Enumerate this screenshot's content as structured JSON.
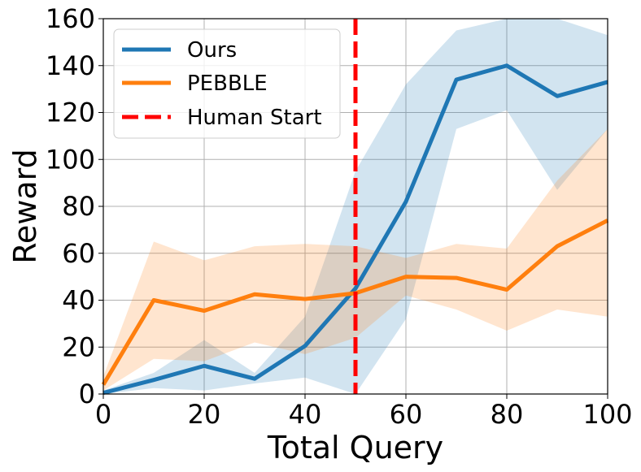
{
  "chart_data": {
    "type": "line",
    "xlabel": "Total Query",
    "ylabel": "Reward",
    "xlim": [
      0,
      100
    ],
    "ylim": [
      0,
      160
    ],
    "x_ticks": [
      "0",
      "20",
      "40",
      "60",
      "80",
      "100"
    ],
    "y_ticks": [
      "0",
      "20",
      "40",
      "60",
      "80",
      "100",
      "120",
      "140",
      "160"
    ],
    "grid": true,
    "legend_position": "top-left",
    "x": [
      0,
      10,
      20,
      30,
      40,
      50,
      60,
      70,
      80,
      90,
      100
    ],
    "series": [
      {
        "name": "Ours",
        "color": "#1f77b4",
        "values": [
          0.5,
          6,
          12,
          6.5,
          20.5,
          45,
          82,
          134,
          140,
          127,
          133
        ],
        "lower": [
          0,
          2.5,
          1.5,
          4.5,
          7,
          0,
          32,
          113,
          121,
          87,
          113
        ],
        "upper": [
          1.5,
          9,
          23,
          9,
          33,
          95,
          132,
          155,
          160,
          160,
          153
        ]
      },
      {
        "name": "PEBBLE",
        "color": "#ff7f0e",
        "values": [
          4,
          40,
          35.5,
          42.5,
          40.5,
          43,
          50,
          49.5,
          44.5,
          63,
          74
        ],
        "lower": [
          1.5,
          15,
          14,
          22,
          17,
          24,
          42,
          36,
          27,
          36,
          33
        ],
        "upper": [
          7.5,
          65,
          57,
          63,
          64,
          63,
          58,
          64,
          62,
          91,
          113
        ]
      }
    ],
    "vline": {
      "name": "Human Start",
      "x": 50,
      "color": "#ff0000"
    }
  }
}
